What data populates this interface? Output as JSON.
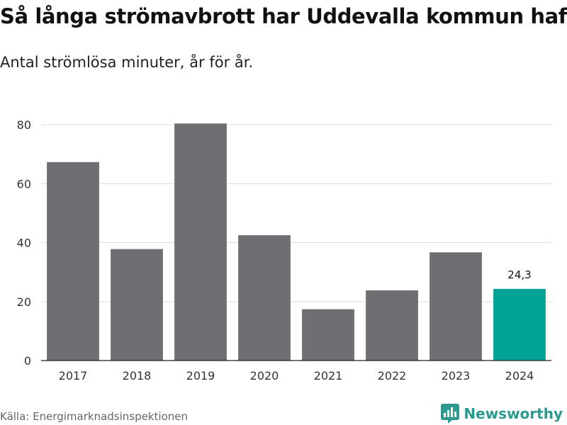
{
  "header": {
    "title": "Så långa strömavbrott har Uddevalla kommun haft",
    "subtitle": "Antal strömlösa minuter, år för år."
  },
  "footer": {
    "source": "Källa: Energimarknadsinspektionen",
    "brand_name": "Newsworthy",
    "brand_icon": "newsworthy-logo-icon"
  },
  "colors": {
    "bar": "#6e6e73",
    "highlight": "#00a497",
    "grid": "#dcdcdc",
    "axis": "#222222",
    "brand": "#2c9a8f"
  },
  "chart_data": {
    "type": "bar",
    "title": "Så långa strömavbrott har Uddevalla kommun haft",
    "subtitle": "Antal strömlösa minuter, år för år.",
    "xlabel": "",
    "ylabel": "",
    "categories": [
      "2017",
      "2018",
      "2019",
      "2020",
      "2021",
      "2022",
      "2023",
      "2024"
    ],
    "values": [
      67.3,
      37.8,
      80.4,
      42.5,
      17.4,
      23.8,
      36.7,
      24.3
    ],
    "highlight_index": 7,
    "data_labels": [
      {
        "index": 7,
        "text": "24,3"
      }
    ],
    "ylim": [
      0,
      80
    ],
    "yticks": [
      0,
      20,
      40,
      60,
      80
    ],
    "grid": true,
    "legend": "none"
  }
}
